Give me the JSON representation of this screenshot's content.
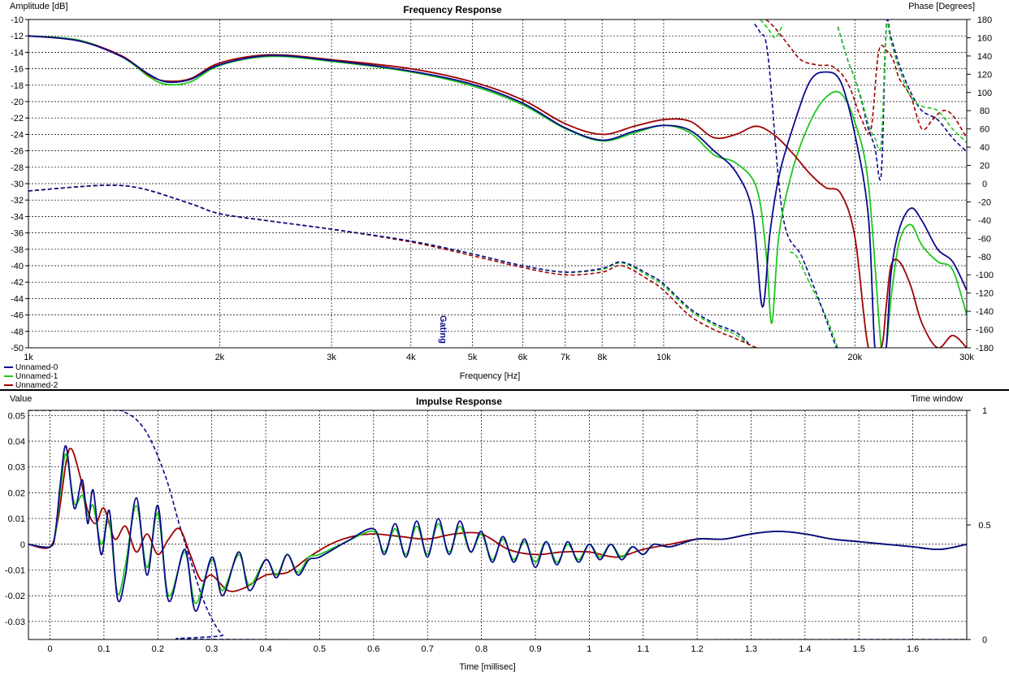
{
  "colors": {
    "series0": "#0a0a8c",
    "series1": "#1ec81e",
    "series2": "#a00000",
    "grid": "#000000",
    "background": "#ffffff"
  },
  "freq": {
    "title": "Frequency Response",
    "ylabel_left": "Amplitude [dB]",
    "ylabel_right": "Phase [Degrees]",
    "xlabel": "Frequency [Hz]",
    "annotation": "Gating",
    "x_ticks": [
      "1k",
      "2k",
      "3k",
      "4k",
      "5k",
      "6k",
      "7k",
      "8k",
      "10k",
      "20k",
      "30k"
    ],
    "y_ticks": [
      "-10",
      "-12",
      "-14",
      "-16",
      "-18",
      "-20",
      "-22",
      "-24",
      "-26",
      "-28",
      "-30",
      "-32",
      "-34",
      "-36",
      "-38",
      "-40",
      "-42",
      "-44",
      "-46",
      "-48",
      "-50"
    ],
    "y2_ticks": [
      "180",
      "160",
      "140",
      "120",
      "100",
      "80",
      "60",
      "40",
      "20",
      "0",
      "-20",
      "-40",
      "-60",
      "-80",
      "-100",
      "-120",
      "-140",
      "-160",
      "-180"
    ],
    "legend": [
      "Unnamed-0",
      "Unnamed-1",
      "Unnamed-2"
    ]
  },
  "impulse": {
    "title": "Impulse Response",
    "ylabel_left": "Value",
    "ylabel_right": "Time window",
    "xlabel": "Time [millisec]",
    "x_ticks": [
      "0",
      "0.1",
      "0.2",
      "0.3",
      "0.4",
      "0.5",
      "0.6",
      "0.7",
      "0.8",
      "0.9",
      "1",
      "1.1",
      "1.2",
      "1.3",
      "1.4",
      "1.5",
      "1.6"
    ],
    "y_ticks": [
      "0.05",
      "0.04",
      "0.03",
      "0.02",
      "0.01",
      "0",
      "-0.01",
      "-0.02",
      "-0.03"
    ],
    "y2_ticks": [
      "1",
      "0.5",
      "0"
    ]
  },
  "chart_data": [
    {
      "type": "line",
      "title": "Frequency Response",
      "xlabel": "Frequency [Hz]",
      "ylabel": "Amplitude [dB]",
      "y2label": "Phase [Degrees]",
      "xscale": "log",
      "xlim": [
        1000,
        30000
      ],
      "ylim": [
        -50,
        -10
      ],
      "y2lim": [
        -180,
        180
      ],
      "grid": true,
      "legend_position": "bottom-left",
      "amplitude_series": [
        {
          "name": "Unnamed-0",
          "x": [
            1000,
            1200,
            1400,
            1550,
            1650,
            1800,
            2000,
            2400,
            3000,
            4000,
            5000,
            6000,
            7000,
            8000,
            9000,
            10000,
            11000,
            12000,
            13000,
            13800,
            14300,
            14700,
            15200,
            16000,
            17000,
            18000,
            19000,
            20000,
            21000,
            21500,
            22000,
            22400,
            22800,
            23500,
            24500,
            25500,
            27000,
            28500,
            30000
          ],
          "y": [
            -12,
            -12.6,
            -14.5,
            -16.7,
            -17.6,
            -17.3,
            -15.5,
            -14.4,
            -15.0,
            -16.3,
            -17.9,
            -20.2,
            -23.2,
            -24.7,
            -23.6,
            -22.9,
            -23.5,
            -26.0,
            -28.6,
            -33.5,
            -45.0,
            -36.0,
            -29.0,
            -23.0,
            -17.5,
            -16.4,
            -17.6,
            -24.0,
            -34.0,
            -50.0,
            -50.0,
            -50.0,
            -41.0,
            -35.5,
            -33.0,
            -34.5,
            -38.0,
            -39.5,
            -43.0
          ]
        },
        {
          "name": "Unnamed-1",
          "x": [
            1000,
            1200,
            1400,
            1550,
            1650,
            1800,
            2000,
            2400,
            3000,
            4000,
            5000,
            6000,
            7000,
            8000,
            9000,
            10000,
            11000,
            12000,
            13000,
            14000,
            14500,
            14800,
            15200,
            16000,
            17000,
            18000,
            19000,
            20000,
            21000,
            22000,
            22400,
            22800,
            23500,
            24500,
            25500,
            27000,
            28500,
            30000
          ],
          "y": [
            -12,
            -12.5,
            -14.5,
            -17.0,
            -17.9,
            -17.6,
            -15.6,
            -14.5,
            -15.1,
            -16.4,
            -18.1,
            -20.4,
            -23.3,
            -24.8,
            -23.8,
            -22.9,
            -23.8,
            -26.5,
            -27.5,
            -30.5,
            -38.5,
            -47.0,
            -36.0,
            -28.0,
            -22.5,
            -19.5,
            -19.0,
            -22.5,
            -30.0,
            -50.0,
            -50.0,
            -44.0,
            -37.0,
            -35.0,
            -37.5,
            -39.5,
            -40.5,
            -46.0
          ]
        },
        {
          "name": "Unnamed-2",
          "x": [
            1000,
            1200,
            1400,
            1550,
            1650,
            1800,
            2000,
            2400,
            3000,
            4000,
            5000,
            6000,
            7000,
            8000,
            9000,
            10000,
            11000,
            12000,
            13000,
            14000,
            15000,
            16000,
            17000,
            18000,
            19000,
            20000,
            21000,
            22000,
            22400,
            22800,
            23500,
            24500,
            25500,
            27000,
            28500,
            30000
          ],
          "y": [
            -12,
            -12.6,
            -14.4,
            -16.8,
            -17.5,
            -17.2,
            -15.3,
            -14.3,
            -14.9,
            -16.0,
            -17.6,
            -19.8,
            -22.7,
            -24.0,
            -23.0,
            -22.2,
            -22.4,
            -24.4,
            -24.0,
            -23.0,
            -24.2,
            -26.4,
            -28.8,
            -30.5,
            -31.2,
            -36.5,
            -50.0,
            -50.0,
            -45.0,
            -40.0,
            -39.5,
            -42.5,
            -47.0,
            -50.0,
            -48.5,
            -50.0
          ]
        }
      ],
      "phase_series": [
        {
          "name": "Unnamed-0",
          "x": [
            1000,
            1300,
            1500,
            1800,
            2000,
            2400,
            3000,
            4000,
            5000,
            6000,
            7000,
            8000,
            8600,
            9500,
            10000,
            11000,
            12000,
            13000,
            13600,
            13900,
            14200,
            14600,
            15400,
            16500,
            17500,
            18700
          ],
          "y": [
            -8,
            -2,
            -5,
            -22,
            -33,
            -41,
            -50,
            -63,
            -77,
            -90,
            -97,
            -93,
            -86,
            -100,
            -110,
            -137,
            -153,
            -163,
            -175,
            175,
            165,
            140,
            -35,
            -80,
            -125,
            -180
          ]
        },
        {
          "name": "Unnamed-1",
          "x": [
            1000,
            1300,
            1500,
            1800,
            2000,
            2400,
            3000,
            4000,
            5000,
            6000,
            7000,
            8000,
            8600,
            9500,
            10000,
            11000,
            12000,
            13000,
            13800,
            14200,
            14600,
            15000,
            15400,
            15800,
            16200,
            17000,
            18000,
            18800
          ],
          "y": [
            -8,
            -2,
            -5,
            -22,
            -33,
            -41,
            -50,
            -63,
            -77,
            -90,
            -97,
            -94,
            -87,
            -102,
            -112,
            -139,
            -155,
            -166,
            -180,
            180,
            170,
            160,
            175,
            -75,
            -80,
            -110,
            -145,
            -180
          ]
        },
        {
          "name": "Unnamed-2",
          "x": [
            1000,
            1300,
            1500,
            1800,
            2000,
            2400,
            3000,
            4000,
            5000,
            6000,
            7000,
            8000,
            8600,
            9500,
            10000,
            11000,
            12000,
            13000,
            14000,
            14500,
            15000,
            15800,
            16500,
            17500,
            18500,
            19500,
            20500,
            21200,
            21800,
            22500,
            23000,
            23500,
            24500,
            25500,
            26500,
            27500,
            28500,
            30000
          ],
          "y": [
            -8,
            -2,
            -5,
            -22,
            -33,
            -41,
            -50,
            -64,
            -79,
            -92,
            -100,
            -97,
            -90,
            -106,
            -117,
            -145,
            -160,
            -170,
            -180,
            180,
            170,
            150,
            135,
            130,
            128,
            110,
            70,
            60,
            145,
            145,
            135,
            115,
            95,
            60,
            70,
            80,
            75,
            50
          ]
        }
      ],
      "phase_wrap_series": [
        {
          "name": "Unnamed-0",
          "x": [
            18800,
            19500,
            20000,
            20500,
            21000,
            21500,
            22000,
            22400,
            22800,
            23500,
            24500,
            25500,
            27000,
            28500,
            30000
          ],
          "y": [
            172,
            135,
            115,
            90,
            60,
            40,
            10,
            170,
            160,
            130,
            100,
            80,
            70,
            50,
            35
          ]
        },
        {
          "name": "Unnamed-1",
          "x": [
            18800,
            19500,
            20000,
            20500,
            21000,
            21500,
            22000,
            22400,
            22800,
            23500,
            24500,
            25500,
            27000,
            28500,
            30000
          ],
          "y": [
            172,
            135,
            115,
            92,
            65,
            50,
            45,
            170,
            155,
            125,
            95,
            85,
            80,
            60,
            45
          ]
        }
      ]
    },
    {
      "type": "line",
      "title": "Impulse Response",
      "xlabel": "Time [millisec]",
      "ylabel": "Value",
      "y2label": "Time window",
      "xlim": [
        -0.04,
        1.7
      ],
      "ylim": [
        -0.037,
        0.052
      ],
      "y2lim": [
        0,
        1
      ],
      "grid": true,
      "impulse_series": [
        {
          "name": "Unnamed-0",
          "x": [
            -0.04,
            0.0,
            0.01,
            0.02,
            0.03,
            0.045,
            0.06,
            0.07,
            0.08,
            0.095,
            0.11,
            0.125,
            0.14,
            0.16,
            0.18,
            0.2,
            0.22,
            0.25,
            0.27,
            0.3,
            0.32,
            0.35,
            0.37,
            0.4,
            0.42,
            0.44,
            0.46,
            0.48,
            0.5,
            0.55,
            0.6,
            0.62,
            0.64,
            0.66,
            0.68,
            0.7,
            0.72,
            0.74,
            0.76,
            0.78,
            0.8,
            0.82,
            0.84,
            0.86,
            0.88,
            0.9,
            0.92,
            0.94,
            0.96,
            0.98,
            1.0,
            1.02,
            1.04,
            1.06,
            1.08,
            1.1,
            1.12,
            1.15,
            1.2,
            1.25,
            1.3,
            1.35,
            1.4,
            1.45,
            1.5,
            1.55,
            1.6,
            1.65,
            1.7
          ],
          "y": [
            0.0,
            -0.001,
            0.005,
            0.025,
            0.038,
            0.014,
            0.025,
            0.008,
            0.021,
            -0.004,
            0.013,
            -0.021,
            -0.012,
            0.018,
            -0.012,
            0.015,
            -0.022,
            -0.002,
            -0.026,
            -0.005,
            -0.02,
            -0.003,
            -0.018,
            -0.006,
            -0.013,
            -0.004,
            -0.012,
            -0.006,
            -0.005,
            0.001,
            0.006,
            -0.004,
            0.008,
            -0.005,
            0.009,
            -0.005,
            0.01,
            -0.004,
            0.009,
            -0.003,
            0.005,
            -0.007,
            0.003,
            -0.007,
            0.002,
            -0.009,
            0.001,
            -0.008,
            0.001,
            -0.007,
            0.0,
            -0.006,
            0.0,
            -0.006,
            -0.001,
            -0.004,
            0.0,
            -0.001,
            0.002,
            0.002,
            0.004,
            0.005,
            0.004,
            0.002,
            0.001,
            0.0,
            -0.001,
            -0.002,
            0.0
          ]
        },
        {
          "name": "Unnamed-1",
          "x": [
            -0.04,
            0.0,
            0.01,
            0.02,
            0.03,
            0.045,
            0.06,
            0.07,
            0.08,
            0.095,
            0.11,
            0.125,
            0.14,
            0.16,
            0.18,
            0.2,
            0.22,
            0.25,
            0.27,
            0.3,
            0.32,
            0.35,
            0.37,
            0.4,
            0.42,
            0.44,
            0.46,
            0.48,
            0.5,
            0.55,
            0.6,
            0.62,
            0.64,
            0.66,
            0.68,
            0.7,
            0.72,
            0.74,
            0.76,
            0.78,
            0.8,
            0.82,
            0.84,
            0.86,
            0.88,
            0.9,
            0.92,
            0.94,
            0.96,
            0.98,
            1.0,
            1.02,
            1.04,
            1.06,
            1.08,
            1.1,
            1.12,
            1.15,
            1.2,
            1.25,
            1.3,
            1.35,
            1.4,
            1.45,
            1.5,
            1.55,
            1.6,
            1.65,
            1.7
          ],
          "y": [
            0.0,
            -0.001,
            0.004,
            0.022,
            0.035,
            0.016,
            0.019,
            0.011,
            0.015,
            0.0,
            0.009,
            -0.019,
            -0.008,
            0.015,
            -0.009,
            0.012,
            -0.02,
            -0.003,
            -0.023,
            -0.006,
            -0.018,
            -0.004,
            -0.016,
            -0.006,
            -0.012,
            -0.004,
            -0.011,
            -0.005,
            -0.004,
            0.001,
            0.005,
            -0.003,
            0.006,
            -0.004,
            0.007,
            -0.004,
            0.008,
            -0.003,
            0.007,
            -0.003,
            0.004,
            -0.006,
            0.002,
            -0.006,
            0.001,
            -0.007,
            0.001,
            -0.007,
            0.0,
            -0.006,
            0.0,
            -0.005,
            0.0,
            -0.005,
            -0.001,
            -0.004,
            0.0,
            -0.001,
            0.002,
            0.002,
            0.004,
            0.005,
            0.004,
            0.002,
            0.001,
            0.0,
            -0.001,
            -0.002,
            0.0
          ]
        },
        {
          "name": "Unnamed-2",
          "x": [
            -0.04,
            0.0,
            0.015,
            0.03,
            0.04,
            0.055,
            0.07,
            0.085,
            0.1,
            0.12,
            0.14,
            0.16,
            0.18,
            0.2,
            0.22,
            0.24,
            0.26,
            0.28,
            0.3,
            0.33,
            0.36,
            0.4,
            0.44,
            0.48,
            0.52,
            0.56,
            0.6,
            0.65,
            0.7,
            0.75,
            0.8,
            0.85,
            0.9,
            0.95,
            1.0,
            1.05,
            1.1,
            1.15,
            1.2,
            1.25,
            1.3,
            1.35,
            1.4,
            1.45,
            1.5,
            1.55,
            1.6,
            1.65,
            1.7
          ],
          "y": [
            0.0,
            -0.001,
            0.01,
            0.032,
            0.037,
            0.027,
            0.013,
            0.008,
            0.014,
            0.002,
            0.007,
            -0.003,
            0.004,
            -0.004,
            0.002,
            0.006,
            -0.004,
            -0.014,
            -0.012,
            -0.018,
            -0.017,
            -0.012,
            -0.011,
            -0.005,
            0.0,
            0.003,
            0.004,
            0.003,
            0.002,
            0.004,
            0.004,
            -0.002,
            -0.004,
            -0.003,
            -0.003,
            -0.005,
            -0.002,
            0.0,
            0.002,
            0.002,
            0.004,
            0.005,
            0.004,
            0.002,
            0.001,
            0.0,
            -0.001,
            -0.002,
            0.0
          ]
        }
      ],
      "time_window": {
        "x": [
          -0.04,
          0.12,
          0.14,
          0.16,
          0.18,
          0.2,
          0.22,
          0.24,
          0.26,
          0.28,
          0.3,
          0.32,
          0.34,
          1.7
        ],
        "y": [
          1.0,
          1.0,
          0.99,
          0.96,
          0.9,
          0.8,
          0.67,
          0.5,
          0.35,
          0.2,
          0.09,
          0.02,
          0.0,
          0.0
        ]
      }
    }
  ]
}
